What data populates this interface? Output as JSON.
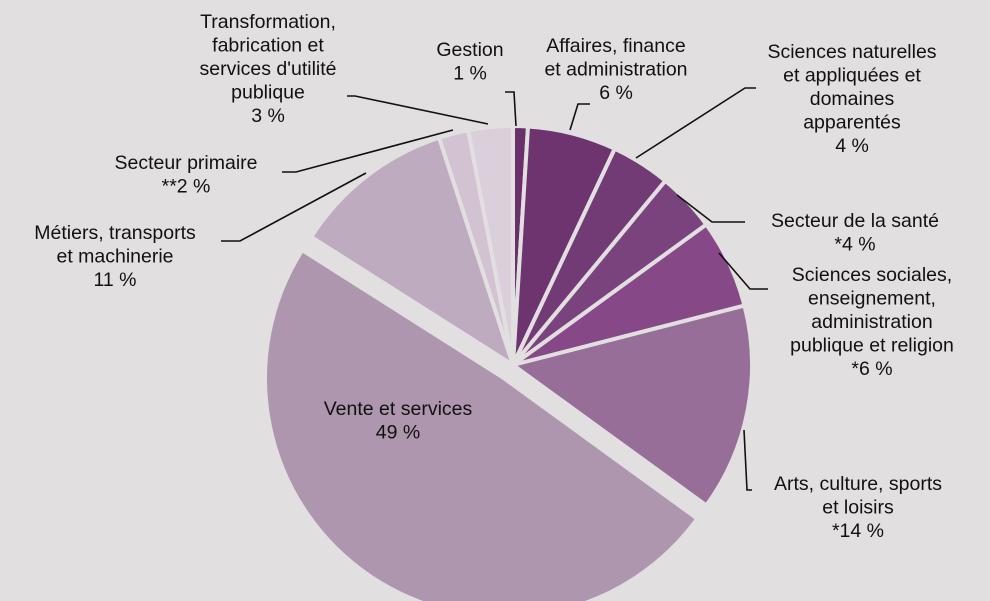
{
  "chart_data": {
    "type": "pie",
    "title": "",
    "colors": {
      "background": "#e2dfe1",
      "separator": "#e2dfe1",
      "leader": "#111111"
    },
    "slices": [
      {
        "label_lines": [
          "Gestion",
          "1 %"
        ],
        "value": 1,
        "color": "#6b2f6b"
      },
      {
        "label_lines": [
          "Affaires, finance",
          "et administration",
          "6 %"
        ],
        "value": 6,
        "color": "#6d3470"
      },
      {
        "label_lines": [
          "Sciences naturelles",
          "et appliquées et",
          "domaines",
          "apparentés",
          "4 %"
        ],
        "value": 4,
        "color": "#733b76"
      },
      {
        "label_lines": [
          "Secteur de la santé",
          "*4 %"
        ],
        "value": 4,
        "color": "#7a437d"
      },
      {
        "label_lines": [
          "Sciences sociales,",
          "enseignement,",
          "administration",
          "publique et religion",
          "*6 %"
        ],
        "value": 6,
        "color": "#864886"
      },
      {
        "label_lines": [
          "Arts, culture, sports",
          "et loisirs",
          "*14 %"
        ],
        "value": 14,
        "color": "#966e97"
      },
      {
        "label_lines": [
          "Vente et services",
          "49 %"
        ],
        "value": 49,
        "color": "#ad96ae"
      },
      {
        "label_lines": [
          "Métiers, transports",
          "et machinerie",
          "11 %"
        ],
        "value": 11,
        "color": "#bfabc0"
      },
      {
        "label_lines": [
          "Secteur primaire",
          "**2 %"
        ],
        "value": 2,
        "color": "#d2c2d2"
      },
      {
        "label_lines": [
          "Transformation,",
          "fabrication et",
          "services d'utilité",
          "publique",
          "3 %"
        ],
        "value": 3,
        "color": "#dccfdc"
      }
    ]
  }
}
